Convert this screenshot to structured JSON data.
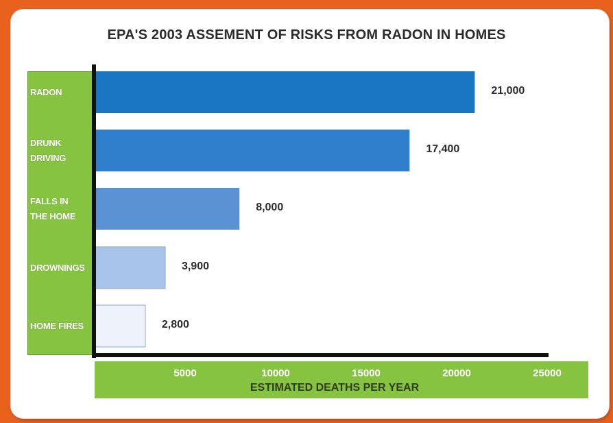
{
  "chart_data": {
    "type": "bar",
    "orientation": "horizontal",
    "title": "EPA'S 2003 ASSEMENT OF RISKS FROM RADON IN HOMES",
    "xlabel": "ESTIMATED DEATHS PER YEAR",
    "ylabel": "",
    "categories": [
      [
        "RADON"
      ],
      [
        "DRUNK",
        "DRIVING"
      ],
      [
        "FALLS IN",
        "THE HOME"
      ],
      [
        "DROWNINGS"
      ],
      [
        "HOME FIRES"
      ]
    ],
    "values": [
      21000,
      17400,
      8000,
      3900,
      2800
    ],
    "value_labels": [
      "21,000",
      "17,400",
      "8,000",
      "3,900",
      "2,800"
    ],
    "xlim": [
      0,
      25000
    ],
    "xticks": [
      5000,
      10000,
      15000,
      20000,
      25000
    ],
    "bar_colors": [
      "#1a75c2",
      "#2f7fcc",
      "#5a92d4",
      "#a9c4ea",
      "#eef3fb"
    ],
    "grid": false
  }
}
